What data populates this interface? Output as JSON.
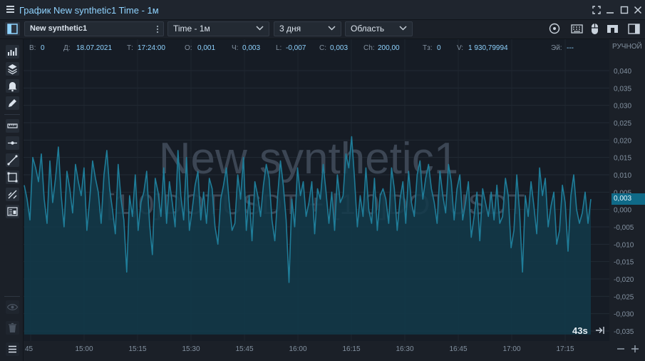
{
  "window": {
    "title": "График New synthetic1 Time - 1м"
  },
  "toolbar": {
    "instrument": "New synthetic1",
    "timeframe": "Time - 1м",
    "period": "3 дня",
    "chart_type": "Область"
  },
  "info": [
    {
      "key": "В:",
      "value": "0"
    },
    {
      "key": "Д:",
      "value": "18.07.2021"
    },
    {
      "key": "Т:",
      "value": "17:24:00"
    },
    {
      "key": "О:",
      "value": "0,001"
    },
    {
      "key": "Ч:",
      "value": "0,003"
    },
    {
      "key": "L:",
      "value": "-0,007"
    },
    {
      "key": "С:",
      "value": "0,003"
    },
    {
      "key": "Ch:",
      "value": "200,00"
    },
    {
      "key": "Тз:",
      "value": "0"
    },
    {
      "key": "V:",
      "value": "1 930,79994"
    },
    {
      "key": "Эй:",
      "value": "---"
    }
  ],
  "mode_label": "РУЧНОЙ",
  "current_price": "0,003",
  "timer": "43s",
  "watermark": {
    "line1": "New synthetic1",
    "line2": "[1,0]DOTUSDT + [1,0]DOTUSDT"
  },
  "colors": {
    "accent": "#8fd3ff",
    "series_line": "#1f7d99",
    "series_fill": "#12394a",
    "background": "#161c25",
    "price_badge": "#0f6a88"
  },
  "icons": {
    "sidebar": [
      "indicators-icon",
      "layers-icon",
      "alert-bell-icon",
      "pencil-icon",
      "ruler-icon",
      "horizontal-line-icon",
      "trend-line-icon",
      "rectangle-icon",
      "fibonacci-icon",
      "strategy-icon",
      "eye-icon",
      "trash-icon",
      "list-icon"
    ],
    "toolbar_right": [
      "magnifier-icon",
      "keyboard-icon",
      "mouse-icon",
      "magnet-icon",
      "panel-toggle-icon"
    ]
  },
  "chart_data": {
    "type": "area",
    "title": "",
    "xlabel": "",
    "ylabel": "",
    "x_tick_labels": [
      "45",
      "15:00",
      "15:15",
      "15:30",
      "15:45",
      "16:00",
      "16:15",
      "16:30",
      "16:45",
      "17:00",
      "17:15"
    ],
    "y_tick_labels": [
      "0,040",
      "0,035",
      "0,030",
      "0,025",
      "0,020",
      "0,015",
      "0,010",
      "0,005",
      "0,000",
      "-0,005",
      "-0,010",
      "-0,015",
      "-0,020",
      "-0,025",
      "-0,030",
      "-0,035"
    ],
    "y_ticks": [
      0.04,
      0.035,
      0.03,
      0.025,
      0.02,
      0.015,
      0.01,
      0.005,
      0.0,
      -0.005,
      -0.01,
      -0.015,
      -0.02,
      -0.025,
      -0.03,
      -0.035
    ],
    "ylim": [
      -0.036,
      0.045
    ],
    "x_minutes_per_tick": 15,
    "values": [
      0.007,
      0.003,
      -0.003,
      0.015,
      0.012,
      0.008,
      0.016,
      0.003,
      -0.004,
      0.014,
      0.002,
      0.009,
      0.018,
      0.004,
      -0.005,
      0.011,
      0.006,
      -0.001,
      0.013,
      0.008,
      0.004,
      0.012,
      -0.006,
      0.003,
      0.014,
      0.009,
      0.005,
      -0.004,
      0.01,
      0.017,
      0.006,
      0.0,
      -0.007,
      0.013,
      0.003,
      -0.003,
      -0.018,
      0.004,
      -0.002,
      0.01,
      -0.006,
      0.002,
      0.005,
      0.011,
      -0.004,
      -0.013,
      0.009,
      0.005,
      -0.002,
      0.012,
      -0.004,
      0.008,
      0.002,
      -0.005,
      0.017,
      0.004,
      -0.003,
      0.015,
      -0.006,
      0.0,
      0.007,
      0.011,
      -0.003,
      0.005,
      -0.004,
      0.009,
      0.006,
      -0.005,
      -0.01,
      0.003,
      0.007,
      0.012,
      0.002,
      -0.006,
      -0.004,
      0.01,
      0.003,
      0.015,
      -0.006,
      0.004,
      -0.009,
      0.008,
      0.004,
      -0.002,
      0.007,
      0.013,
      0.009,
      -0.003,
      -0.009,
      0.004,
      0.014,
      0.007,
      -0.003,
      -0.021,
      0.003,
      -0.005,
      0.012,
      0.004,
      0.008,
      -0.002,
      0.002,
      0.008,
      -0.007,
      0.006,
      0.003,
      0.013,
      0.005,
      -0.004,
      0.005,
      -0.006,
      0.01,
      0.002,
      0.004,
      0.016,
      0.012,
      0.021,
      0.009,
      -0.005,
      0.004,
      -0.002,
      0.012,
      0.0,
      -0.004,
      0.009,
      -0.006,
      0.004,
      0.006,
      0.003,
      -0.004,
      0.012,
      0.006,
      -0.006,
      0.003,
      0.008,
      -0.004,
      0.011,
      0.002,
      -0.002,
      0.01,
      0.014,
      0.003,
      0.009,
      0.013,
      0.006,
      0.002,
      -0.004,
      0.011,
      0.004,
      -0.001,
      0.013,
      0.008,
      -0.003,
      0.006,
      0.01,
      -0.003,
      0.002,
      0.008,
      -0.008,
      -0.002,
      0.005,
      -0.009,
      0.006,
      0.002,
      -0.002,
      0.005,
      -0.003,
      0.007,
      -0.004,
      -0.002,
      0.009,
      0.004,
      -0.011,
      -0.006,
      0.01,
      -0.001,
      -0.018,
      0.004,
      -0.002,
      0.008,
      0.001,
      -0.007,
      0.012,
      0.004,
      0.009,
      -0.005,
      0.001,
      0.005,
      -0.01,
      -0.006,
      0.007,
      0.002,
      -0.012,
      0.004,
      0.01,
      0.0,
      -0.004,
      -0.001,
      0.005,
      -0.004,
      0.003
    ]
  }
}
